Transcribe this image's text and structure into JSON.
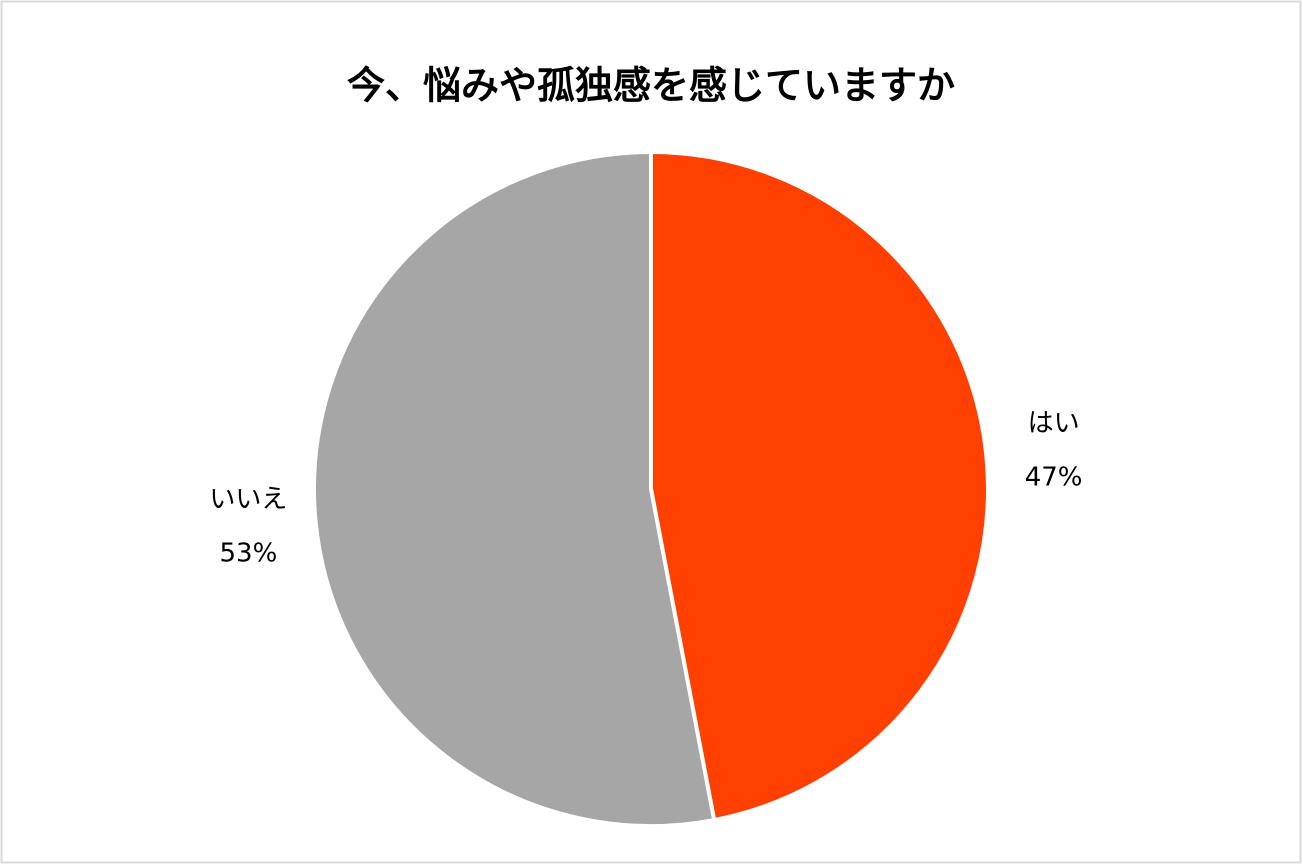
{
  "chart_data": {
    "type": "pie",
    "title": "今、悩みや孤独感を感じていますか",
    "categories": [
      "はい",
      "いいえ"
    ],
    "values": [
      47,
      53
    ],
    "value_labels": [
      "47%",
      "53%"
    ],
    "colors": [
      "#ff4000",
      "#a6a6a6"
    ]
  }
}
